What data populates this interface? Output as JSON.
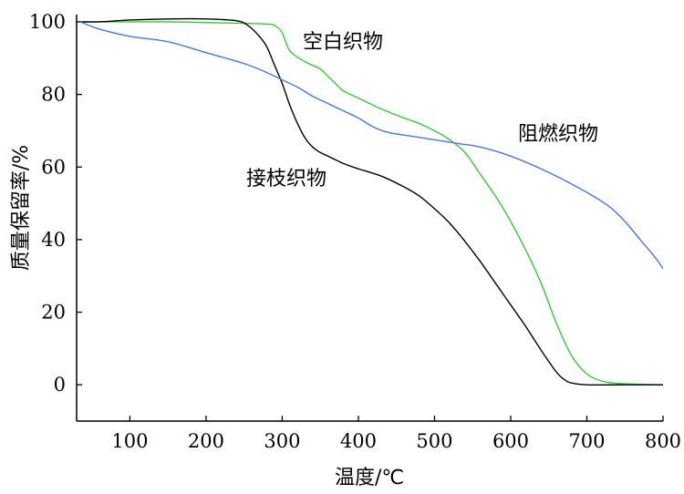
{
  "chart_data": {
    "type": "line",
    "title": "",
    "xlabel": "温度/℃",
    "ylabel": "质量保留率/%",
    "xlim": [
      30,
      800
    ],
    "ylim": [
      -10,
      102
    ],
    "xticks": [
      100,
      200,
      300,
      400,
      500,
      600,
      700,
      800
    ],
    "yticks": [
      0,
      20,
      40,
      60,
      80,
      100
    ],
    "grid": false,
    "series": [
      {
        "name": "空白织物",
        "color": "#33cc33",
        "x": [
          35,
          60,
          100,
          150,
          200,
          250,
          280,
          290,
          300,
          310,
          330,
          350,
          360,
          370,
          380,
          400,
          430,
          460,
          480,
          500,
          520,
          540,
          560,
          580,
          600,
          620,
          640,
          660,
          680,
          700,
          720,
          740,
          760,
          780,
          800
        ],
        "y": [
          100,
          100,
          100,
          100,
          99.8,
          99.6,
          99.4,
          99,
          97,
          92,
          89,
          87,
          85,
          83,
          81,
          79,
          76,
          73.5,
          72,
          70,
          67.5,
          64,
          58,
          52,
          45,
          37,
          28,
          17,
          8,
          3,
          1,
          0.4,
          0.2,
          0.1,
          0
        ]
      },
      {
        "name": "接枝织物",
        "color": "#000000",
        "x": [
          35,
          60,
          100,
          150,
          200,
          240,
          255,
          270,
          280,
          290,
          300,
          310,
          320,
          330,
          340,
          350,
          360,
          380,
          400,
          430,
          460,
          480,
          500,
          520,
          540,
          560,
          580,
          600,
          620,
          640,
          660,
          670,
          680,
          700,
          750,
          800
        ],
        "y": [
          100,
          100,
          100.5,
          100.8,
          100.8,
          100.3,
          99,
          96,
          93,
          88,
          83,
          77,
          72,
          68,
          65.5,
          64,
          63,
          61,
          59.5,
          57.5,
          54.5,
          52,
          48.5,
          44.5,
          39.5,
          34,
          28,
          22,
          16,
          9.5,
          3.5,
          1.5,
          0.5,
          0,
          0,
          0
        ]
      },
      {
        "name": "阻燃织物",
        "color": "#4477ee",
        "x": [
          35,
          60,
          100,
          150,
          200,
          250,
          280,
          300,
          320,
          340,
          360,
          380,
          400,
          420,
          440,
          470,
          500,
          530,
          560,
          600,
          650,
          700,
          730,
          750,
          770,
          790,
          800
        ],
        "y": [
          100,
          98,
          96,
          94.5,
          91.5,
          88.5,
          86,
          84,
          82,
          79.5,
          77.5,
          75.5,
          73.5,
          71,
          69.5,
          68.5,
          67.5,
          66.5,
          65.5,
          63,
          58.5,
          53,
          49,
          45,
          40,
          35,
          32
        ]
      }
    ],
    "labels": [
      {
        "text": "空白织物",
        "series": "空白织物"
      },
      {
        "text": "接枝织物",
        "series": "接枝织物"
      },
      {
        "text": "阻燃织物",
        "series": "阻燃织物"
      }
    ]
  }
}
